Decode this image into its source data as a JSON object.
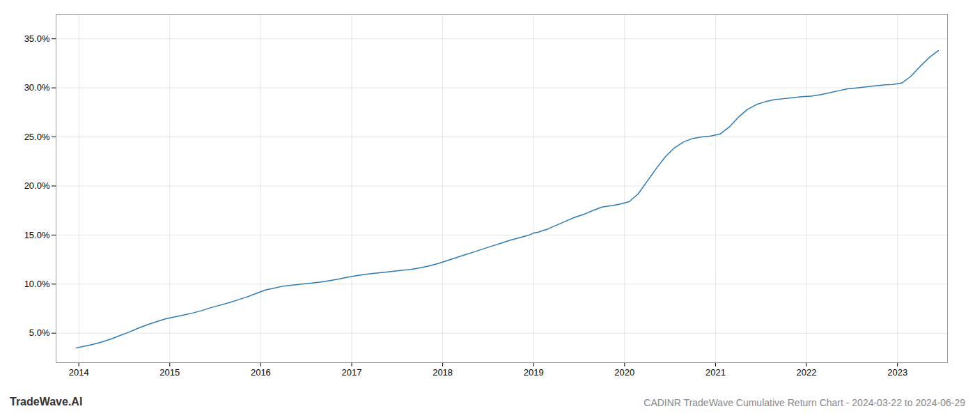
{
  "chart_data": {
    "type": "line",
    "annotations": [
      "TradeWave.AI",
      "CADINR TradeWave Cumulative Return Chart - 2024-03-22 to 2024-06-29"
    ],
    "color": "#2b7bba",
    "grid": true,
    "xlim": [
      2013.75,
      2023.55
    ],
    "xticks": [
      2014,
      2015,
      2016,
      2017,
      2018,
      2019,
      2020,
      2021,
      2022,
      2023
    ],
    "ylim": [
      2.0,
      37.5
    ],
    "yticks": [
      {
        "value": 5.0,
        "label": "5.0%"
      },
      {
        "value": 10.0,
        "label": "10.0%"
      },
      {
        "value": 15.0,
        "label": "15.0%"
      },
      {
        "value": 20.0,
        "label": "20.0%"
      },
      {
        "value": 25.0,
        "label": "25.0%"
      },
      {
        "value": 30.0,
        "label": "30.0%"
      },
      {
        "value": 35.0,
        "label": "35.0%"
      }
    ],
    "x": [
      2013.97,
      2014.05,
      2014.15,
      2014.25,
      2014.35,
      2014.45,
      2014.55,
      2014.65,
      2014.75,
      2014.85,
      2014.95,
      2015.05,
      2015.15,
      2015.25,
      2015.35,
      2015.45,
      2015.55,
      2015.65,
      2015.75,
      2015.85,
      2015.95,
      2016.05,
      2016.15,
      2016.25,
      2016.35,
      2016.45,
      2016.55,
      2016.65,
      2016.75,
      2016.85,
      2016.95,
      2017.05,
      2017.15,
      2017.25,
      2017.35,
      2017.45,
      2017.55,
      2017.65,
      2017.75,
      2017.85,
      2017.95,
      2018.05,
      2018.15,
      2018.25,
      2018.35,
      2018.45,
      2018.55,
      2018.65,
      2018.75,
      2018.85,
      2018.95,
      2019.0,
      2019.05,
      2019.1,
      2019.15,
      2019.2,
      2019.25,
      2019.35,
      2019.45,
      2019.55,
      2019.65,
      2019.75,
      2019.85,
      2019.95,
      2020.05,
      2020.15,
      2020.25,
      2020.35,
      2020.45,
      2020.55,
      2020.65,
      2020.75,
      2020.85,
      2020.95,
      2021.05,
      2021.15,
      2021.25,
      2021.35,
      2021.45,
      2021.55,
      2021.65,
      2021.75,
      2021.85,
      2021.95,
      2022.05,
      2022.15,
      2022.25,
      2022.35,
      2022.45,
      2022.55,
      2022.65,
      2022.75,
      2022.85,
      2022.95,
      2023.05,
      2023.15,
      2023.25,
      2023.35,
      2023.45
    ],
    "values": [
      3.5,
      3.65,
      3.85,
      4.1,
      4.4,
      4.75,
      5.1,
      5.5,
      5.85,
      6.15,
      6.45,
      6.65,
      6.85,
      7.05,
      7.3,
      7.6,
      7.85,
      8.1,
      8.4,
      8.7,
      9.05,
      9.4,
      9.6,
      9.8,
      9.9,
      10.0,
      10.1,
      10.2,
      10.35,
      10.5,
      10.7,
      10.85,
      11.0,
      11.1,
      11.2,
      11.3,
      11.4,
      11.5,
      11.65,
      11.85,
      12.1,
      12.4,
      12.7,
      13.0,
      13.3,
      13.6,
      13.9,
      14.2,
      14.5,
      14.75,
      15.0,
      15.2,
      15.3,
      15.45,
      15.6,
      15.8,
      16.0,
      16.4,
      16.8,
      17.1,
      17.5,
      17.85,
      18.0,
      18.15,
      18.4,
      19.2,
      20.5,
      21.8,
      23.0,
      23.9,
      24.5,
      24.85,
      25.0,
      25.1,
      25.3,
      26.0,
      27.0,
      27.8,
      28.3,
      28.6,
      28.8,
      28.9,
      29.0,
      29.1,
      29.15,
      29.3,
      29.5,
      29.7,
      29.9,
      30.0,
      30.1,
      30.2,
      30.3,
      30.35,
      30.5,
      31.2,
      32.2,
      33.1,
      33.8
    ]
  }
}
